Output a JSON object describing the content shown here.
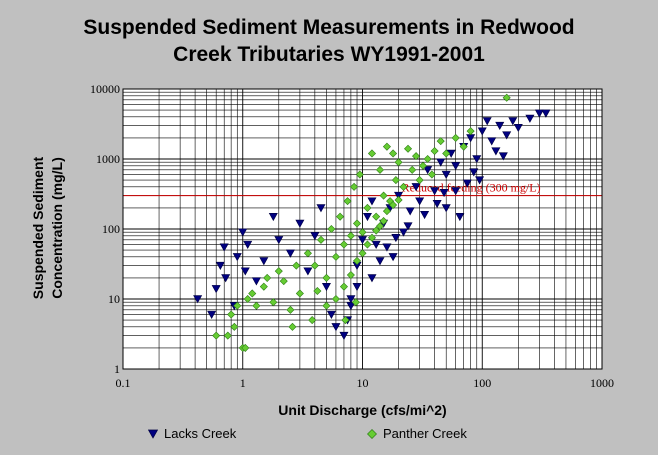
{
  "chart_data": {
    "type": "scatter",
    "title_lines": [
      "Suspended Sediment Measurements in Redwood",
      "Creek Tributaries WY1991-2001"
    ],
    "xlabel": "Unit Discharge (cfs/mi^2)",
    "ylabel_lines": [
      "Suspended Sediment",
      "Concentration (mg/L)"
    ],
    "x_scale": "log",
    "y_scale": "log",
    "xlim": [
      0.1,
      1000
    ],
    "ylim": [
      1,
      10000
    ],
    "x_ticks": [
      "0.1",
      "1",
      "10",
      "100",
      "1000"
    ],
    "y_ticks": [
      "1",
      "10",
      "100",
      "1000",
      "10000"
    ],
    "grid": true,
    "legend_position": "bottom",
    "reference_line": {
      "y": 300,
      "label": "Reduced feeding (300 mg/L)",
      "color": "#cc0000"
    },
    "series": [
      {
        "name": "Lacks Creek",
        "marker": "triangle-down",
        "color": "#000080",
        "points": [
          [
            0.42,
            10
          ],
          [
            0.55,
            6
          ],
          [
            0.6,
            14
          ],
          [
            0.65,
            30
          ],
          [
            0.7,
            55
          ],
          [
            0.72,
            20
          ],
          [
            0.85,
            8
          ],
          [
            0.9,
            40
          ],
          [
            1.0,
            90
          ],
          [
            1.05,
            25
          ],
          [
            1.1,
            60
          ],
          [
            1.3,
            18
          ],
          [
            1.5,
            35
          ],
          [
            1.8,
            150
          ],
          [
            2.0,
            70
          ],
          [
            2.5,
            45
          ],
          [
            3.0,
            120
          ],
          [
            3.5,
            25
          ],
          [
            4.0,
            80
          ],
          [
            4.5,
            200
          ],
          [
            5.0,
            15
          ],
          [
            5.5,
            6
          ],
          [
            6.0,
            4
          ],
          [
            7.0,
            3
          ],
          [
            7.5,
            5
          ],
          [
            8.0,
            10
          ],
          [
            9.0,
            30
          ],
          [
            10,
            70
          ],
          [
            11,
            150
          ],
          [
            12,
            250
          ],
          [
            13,
            60
          ],
          [
            15,
            120
          ],
          [
            17,
            200
          ],
          [
            18,
            40
          ],
          [
            20,
            300
          ],
          [
            22,
            90
          ],
          [
            25,
            180
          ],
          [
            28,
            400
          ],
          [
            30,
            250
          ],
          [
            35,
            700
          ],
          [
            40,
            350
          ],
          [
            45,
            900
          ],
          [
            50,
            600
          ],
          [
            55,
            1200
          ],
          [
            60,
            800
          ],
          [
            70,
            1500
          ],
          [
            80,
            2000
          ],
          [
            90,
            1000
          ],
          [
            100,
            2500
          ],
          [
            110,
            3500
          ],
          [
            120,
            1800
          ],
          [
            140,
            3000
          ],
          [
            160,
            2200
          ],
          [
            180,
            3500
          ],
          [
            200,
            2800
          ],
          [
            250,
            3800
          ],
          [
            300,
            4500
          ],
          [
            340,
            4500
          ],
          [
            50,
            200
          ],
          [
            60,
            350
          ],
          [
            65,
            150
          ],
          [
            8,
            8
          ],
          [
            9,
            15
          ],
          [
            12,
            20
          ],
          [
            14,
            35
          ],
          [
            16,
            55
          ],
          [
            19,
            75
          ],
          [
            24,
            110
          ],
          [
            33,
            160
          ],
          [
            42,
            230
          ],
          [
            48,
            330
          ],
          [
            75,
            450
          ],
          [
            85,
            650
          ],
          [
            95,
            500
          ],
          [
            130,
            1300
          ],
          [
            150,
            1100
          ]
        ]
      },
      {
        "name": "Panther Creek",
        "marker": "diamond",
        "color": "#66cc33",
        "points": [
          [
            0.6,
            3
          ],
          [
            0.75,
            3
          ],
          [
            0.8,
            6
          ],
          [
            0.85,
            4
          ],
          [
            0.9,
            8
          ],
          [
            1.0,
            2
          ],
          [
            1.05,
            2
          ],
          [
            1.1,
            10
          ],
          [
            1.2,
            12
          ],
          [
            1.3,
            8
          ],
          [
            1.5,
            15
          ],
          [
            1.6,
            20
          ],
          [
            1.8,
            9
          ],
          [
            2.0,
            25
          ],
          [
            2.2,
            18
          ],
          [
            2.5,
            7
          ],
          [
            2.8,
            30
          ],
          [
            3.0,
            12
          ],
          [
            3.5,
            45
          ],
          [
            4.0,
            30
          ],
          [
            4.5,
            70
          ],
          [
            5.0,
            20
          ],
          [
            5.5,
            100
          ],
          [
            6.0,
            40
          ],
          [
            6.5,
            150
          ],
          [
            7.0,
            60
          ],
          [
            7.5,
            250
          ],
          [
            8.0,
            80
          ],
          [
            8.5,
            400
          ],
          [
            9.0,
            120
          ],
          [
            9.5,
            600
          ],
          [
            10,
            90
          ],
          [
            11,
            200
          ],
          [
            12,
            1200
          ],
          [
            13,
            150
          ],
          [
            14,
            700
          ],
          [
            15,
            300
          ],
          [
            16,
            1500
          ],
          [
            17,
            250
          ],
          [
            18,
            1200
          ],
          [
            19,
            500
          ],
          [
            20,
            900
          ],
          [
            22,
            400
          ],
          [
            24,
            1400
          ],
          [
            26,
            700
          ],
          [
            28,
            1100
          ],
          [
            30,
            500
          ],
          [
            32,
            800
          ],
          [
            35,
            1000
          ],
          [
            38,
            600
          ],
          [
            40,
            1300
          ],
          [
            45,
            1800
          ],
          [
            50,
            1200
          ],
          [
            60,
            2000
          ],
          [
            70,
            1500
          ],
          [
            80,
            2500
          ],
          [
            160,
            7500
          ],
          [
            5,
            8
          ],
          [
            6,
            10
          ],
          [
            7,
            15
          ],
          [
            8,
            22
          ],
          [
            9,
            35
          ],
          [
            10,
            45
          ],
          [
            11,
            60
          ],
          [
            12,
            75
          ],
          [
            13,
            95
          ],
          [
            14,
            110
          ],
          [
            15,
            130
          ],
          [
            16,
            180
          ],
          [
            18,
            220
          ],
          [
            20,
            260
          ],
          [
            3.8,
            5
          ],
          [
            4.2,
            13
          ],
          [
            2.6,
            4
          ],
          [
            7.2,
            5
          ],
          [
            8.8,
            9
          ]
        ]
      }
    ]
  }
}
